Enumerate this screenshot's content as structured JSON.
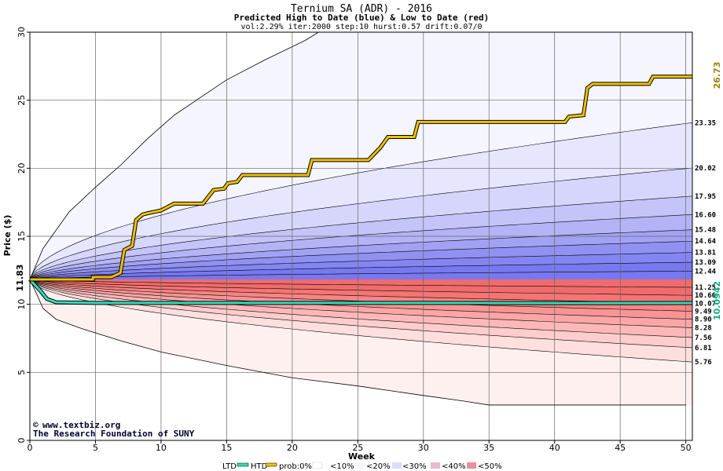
{
  "chart_data": {
    "type": "area",
    "title": "Ternium SA (ADR) - 2016",
    "subtitle": "Predicted High to Date (blue) &  Low to Date (red)",
    "params": "vol:2.29% iter:2000 step:10 hurst:0.57 drift:0.07/0",
    "xlabel": "Week",
    "ylabel": "Price ($)",
    "xlim": [
      0,
      50.5
    ],
    "ylim": [
      0,
      30
    ],
    "x_ticks": [
      "0",
      "5",
      "10",
      "15",
      "20",
      "25",
      "30",
      "35",
      "40",
      "45",
      "50"
    ],
    "y_ticks": [
      "0",
      "5",
      "10",
      "15",
      "20",
      "25",
      "30"
    ],
    "start_price": 11.83,
    "start_label": "11.83",
    "end_labels": [
      "23.35",
      "20.02",
      "17.95",
      "16.60",
      "15.48",
      "14.64",
      "13.81",
      "13.09",
      "12.44",
      "11.25",
      "10.66",
      "10.07",
      "9.49",
      "8.90",
      "8.28",
      "7.56",
      "6.81",
      "5.76"
    ],
    "high_envelope": [
      [
        0,
        11.83
      ],
      [
        1,
        14.1
      ],
      [
        3,
        16.8
      ],
      [
        5,
        18.6
      ],
      [
        7,
        20.3
      ],
      [
        9,
        22.2
      ],
      [
        11,
        23.9
      ],
      [
        13,
        25.2
      ],
      [
        15,
        26.5
      ],
      [
        18,
        28.0
      ],
      [
        21,
        29.4
      ],
      [
        22,
        30
      ]
    ],
    "low_envelope": [
      [
        0,
        11.83
      ],
      [
        0.5,
        10.8
      ],
      [
        1,
        9.7
      ],
      [
        2,
        8.9
      ],
      [
        4,
        8.2
      ],
      [
        7,
        7.3
      ],
      [
        10,
        6.5
      ],
      [
        15,
        5.5
      ],
      [
        20,
        4.6
      ],
      [
        25,
        4.0
      ],
      [
        30,
        3.3
      ],
      [
        33,
        2.9
      ],
      [
        35,
        2.6
      ],
      [
        40,
        2.6
      ],
      [
        45,
        2.6
      ],
      [
        50,
        2.6
      ]
    ],
    "bands_high_end": [
      23.35,
      20.02,
      17.95,
      16.6,
      15.48,
      14.64,
      13.81,
      13.09,
      12.44
    ],
    "bands_low_end": [
      11.25,
      10.66,
      10.07,
      9.49,
      8.9,
      8.28,
      7.56,
      6.81,
      5.76
    ],
    "htd_label": "26.73",
    "ltd_label": "10.0942",
    "htd_series": [
      [
        0,
        11.83
      ],
      [
        4.8,
        11.83
      ],
      [
        4.8,
        12.0
      ],
      [
        6.2,
        12.0
      ],
      [
        6.9,
        12.3
      ],
      [
        7.2,
        14.0
      ],
      [
        7.8,
        14.3
      ],
      [
        8.1,
        16.2
      ],
      [
        8.6,
        16.6
      ],
      [
        9.0,
        16.7
      ],
      [
        10.0,
        16.9
      ],
      [
        10.6,
        17.2
      ],
      [
        11.0,
        17.4
      ],
      [
        13.2,
        17.4
      ],
      [
        14.0,
        18.4
      ],
      [
        14.8,
        18.5
      ],
      [
        15.1,
        18.9
      ],
      [
        15.8,
        19.0
      ],
      [
        16.2,
        19.5
      ],
      [
        21.2,
        19.5
      ],
      [
        21.5,
        20.6
      ],
      [
        25.8,
        20.6
      ],
      [
        26.2,
        21.0
      ],
      [
        26.7,
        21.5
      ],
      [
        27.3,
        22.3
      ],
      [
        29.3,
        22.3
      ],
      [
        29.6,
        23.4
      ],
      [
        40.8,
        23.4
      ],
      [
        41.1,
        23.8
      ],
      [
        42.2,
        23.9
      ],
      [
        42.5,
        25.9
      ],
      [
        42.9,
        26.2
      ],
      [
        47.2,
        26.2
      ],
      [
        47.5,
        26.73
      ],
      [
        50.5,
        26.73
      ]
    ],
    "ltd_series": [
      [
        0,
        11.83
      ],
      [
        0.8,
        11.0
      ],
      [
        1.3,
        10.4
      ],
      [
        2,
        10.15
      ],
      [
        5,
        10.1
      ],
      [
        10,
        10.1
      ],
      [
        20,
        10.1
      ],
      [
        30,
        10.1
      ],
      [
        40,
        10.09
      ],
      [
        50.5,
        10.0942
      ]
    ],
    "legend": [
      "LTD",
      "HTD",
      "prob:0%",
      "<10%",
      "<20%",
      "<30%",
      "<40%",
      "<50%"
    ],
    "credits": [
      "www.textbiz.org",
      "The Research Foundation of SUNY"
    ],
    "colors": {
      "htd": "#f0c000",
      "ltd": "#33ddbb",
      "blue_bands": [
        "#f5f5ff",
        "#e6e6ff",
        "#d6d6fc",
        "#c4c4f8",
        "#b3b3f6",
        "#a2a2f4",
        "#9191f2",
        "#8585f2",
        "#7878f0"
      ],
      "red_bands": [
        "#fff0f0",
        "#ffdede",
        "#fdcccc",
        "#fcb8b8",
        "#faa6a6",
        "#f99494",
        "#f88484",
        "#f67474",
        "#f06c6c"
      ],
      "legend_swatches": [
        "#ffffff",
        "#f5f5ff",
        "#dcdcff",
        "#e8b8d0",
        "#e89098",
        "#7878f0"
      ]
    }
  }
}
